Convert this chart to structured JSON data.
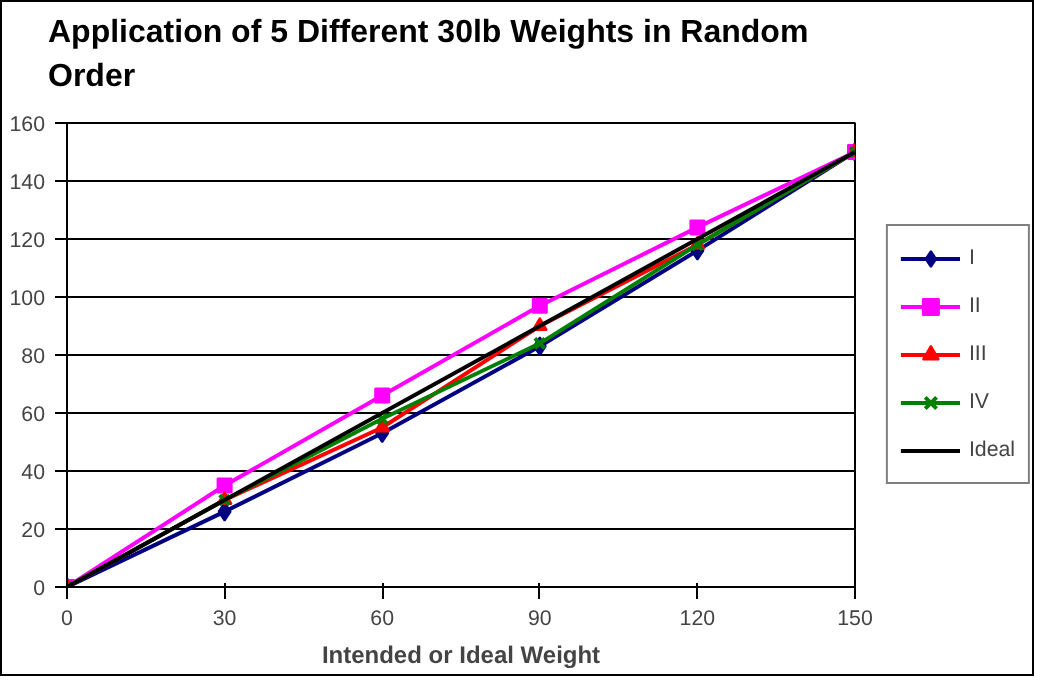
{
  "chart_data": {
    "type": "line",
    "title": "Application of 5 Different 30lb Weights in Random Order",
    "xlabel": "Intended or Ideal Weight",
    "x": [
      0,
      30,
      60,
      90,
      120,
      150
    ],
    "xlim": [
      0,
      150
    ],
    "xticks": [
      0,
      30,
      60,
      90,
      120,
      150
    ],
    "ylim": [
      0,
      160
    ],
    "yticks": [
      0,
      20,
      40,
      60,
      80,
      100,
      120,
      140,
      160
    ],
    "grid": "y",
    "legend": "right",
    "series": [
      {
        "name": "I",
        "color": "#000080",
        "marker": "diamond",
        "values": [
          0,
          26,
          53,
          83,
          116,
          150
        ]
      },
      {
        "name": "II",
        "color": "#ff00ff",
        "marker": "square",
        "values": [
          0,
          35,
          66,
          97,
          124,
          150
        ]
      },
      {
        "name": "III",
        "color": "#ff0000",
        "marker": "triangle",
        "values": [
          0,
          30,
          55,
          90,
          118,
          150
        ]
      },
      {
        "name": "IV",
        "color": "#008000",
        "marker": "cross",
        "values": [
          0,
          30,
          58,
          84,
          118,
          150
        ]
      },
      {
        "name": "Ideal",
        "color": "#000000",
        "marker": "none",
        "values": [
          0,
          30,
          60,
          90,
          120,
          150
        ]
      }
    ]
  }
}
